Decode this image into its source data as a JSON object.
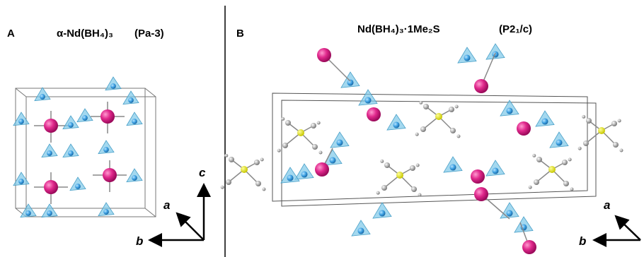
{
  "panel_a": {
    "label": "A",
    "formula": "α-Nd(BH₄)₃",
    "space_group": "(Pa-3)",
    "axes": {
      "a": "a",
      "b": "b",
      "c": "c"
    }
  },
  "panel_b": {
    "label": "B",
    "formula": "Nd(BH₄)₃·1Me₂S",
    "space_group": "(P2₁/c)",
    "axes": {
      "a": "a",
      "b": "b"
    }
  }
}
